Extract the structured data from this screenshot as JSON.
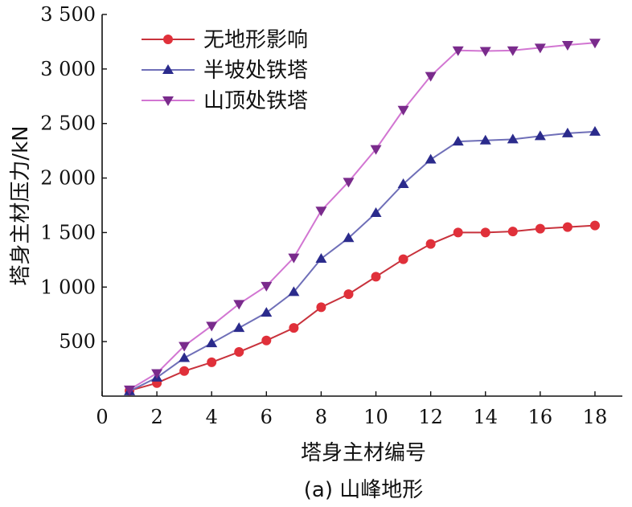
{
  "chart_data": {
    "type": "line",
    "caption": "(a) 山峰地形",
    "xlabel": "塔身主材编号",
    "ylabel": "塔身主材压力/kN",
    "xlim": [
      0,
      19
    ],
    "ylim": [
      0,
      3500
    ],
    "xticks": [
      {
        "value": 0,
        "label": "0"
      },
      {
        "value": 2,
        "label": "2"
      },
      {
        "value": 4,
        "label": "4"
      },
      {
        "value": 6,
        "label": "6"
      },
      {
        "value": 8,
        "label": "8"
      },
      {
        "value": 10,
        "label": "10"
      },
      {
        "value": 12,
        "label": "12"
      },
      {
        "value": 14,
        "label": "14"
      },
      {
        "value": 16,
        "label": "16"
      },
      {
        "value": 18,
        "label": "18"
      }
    ],
    "yticks": [
      {
        "value": 500,
        "label": "500"
      },
      {
        "value": 1000,
        "label": "1 000"
      },
      {
        "value": 1500,
        "label": "1 500"
      },
      {
        "value": 2000,
        "label": "2 000"
      },
      {
        "value": 2500,
        "label": "2 500"
      },
      {
        "value": 3000,
        "label": "3 000"
      },
      {
        "value": 3500,
        "label": "3 500"
      }
    ],
    "grid": false,
    "legend_position": "top-left",
    "x": [
      1,
      2,
      3,
      4,
      5,
      6,
      7,
      8,
      9,
      10,
      11,
      12,
      13,
      14,
      15,
      16,
      17,
      18
    ],
    "series": [
      {
        "name": "无地形影响",
        "color": "#c8323c",
        "marker_color": "#e0303a",
        "marker": "circle",
        "values": [
          50,
          120,
          230,
          310,
          405,
          510,
          625,
          815,
          935,
          1095,
          1255,
          1395,
          1500,
          1500,
          1510,
          1535,
          1550,
          1565
        ]
      },
      {
        "name": "半坡处铁塔",
        "color": "#6f6fb8",
        "marker_color": "#2b2b8c",
        "marker": "triangle-up",
        "values": [
          45,
          170,
          350,
          485,
          625,
          765,
          955,
          1260,
          1450,
          1680,
          1945,
          2170,
          2335,
          2345,
          2355,
          2385,
          2410,
          2425
        ]
      },
      {
        "name": "山顶处铁塔",
        "color": "#d276d2",
        "marker_color": "#7a2b8c",
        "marker": "triangle-down",
        "values": [
          60,
          210,
          460,
          645,
          845,
          1010,
          1270,
          1700,
          1965,
          2265,
          2625,
          2935,
          3170,
          3165,
          3170,
          3195,
          3220,
          3240
        ]
      }
    ]
  }
}
